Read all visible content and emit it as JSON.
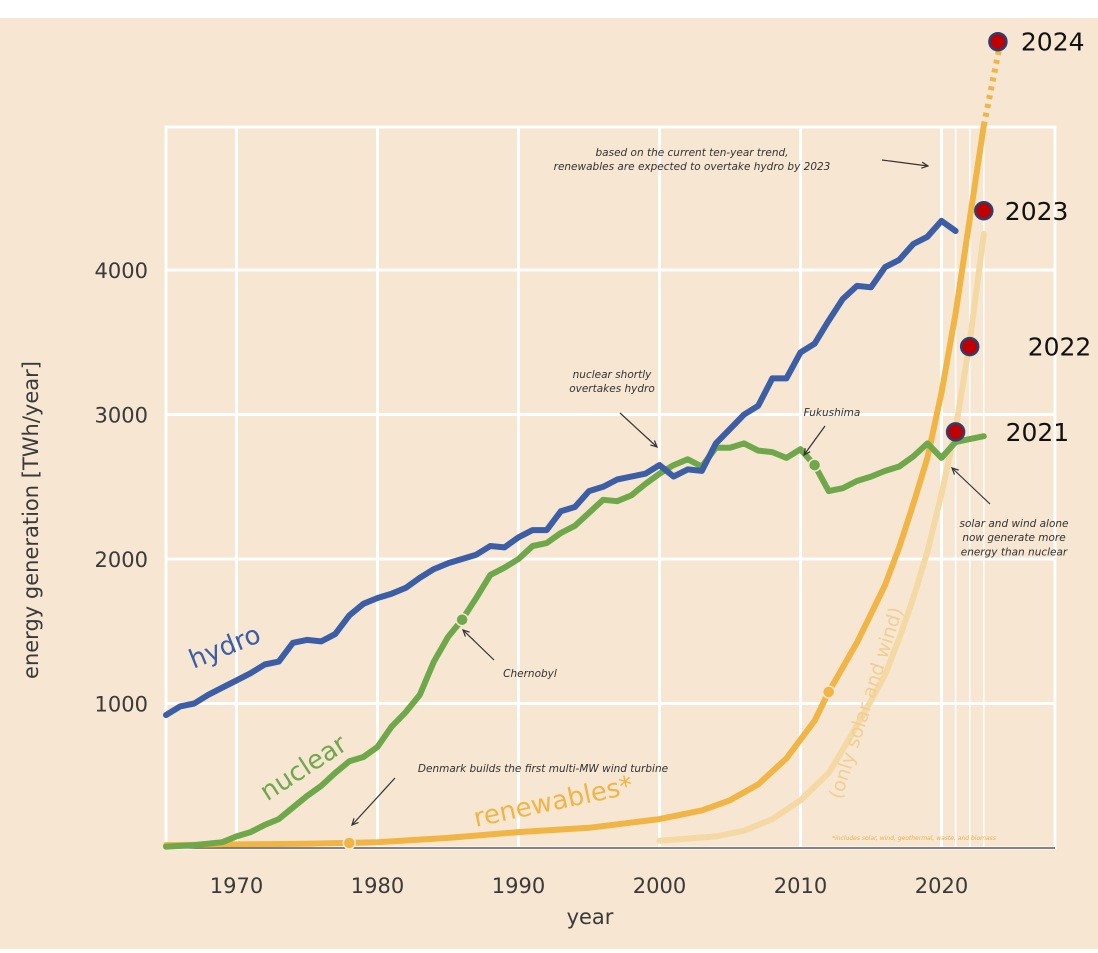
{
  "chart_data": {
    "type": "line",
    "xlabel": "year",
    "ylabel": "energy generation [TWh/year]",
    "xlim": [
      1965,
      2025
    ],
    "ylim": [
      0,
      5000
    ],
    "x_ticks": [
      "1970",
      "1980",
      "1990",
      "2000",
      "2010",
      "2020"
    ],
    "y_ticks": [
      "1000",
      "2000",
      "3000",
      "4000"
    ],
    "grid": true,
    "series": [
      {
        "name": "hydro",
        "color": "#3b5ea6",
        "points": [
          [
            1965,
            920
          ],
          [
            1966,
            980
          ],
          [
            1967,
            1000
          ],
          [
            1968,
            1060
          ],
          [
            1969,
            1110
          ],
          [
            1970,
            1160
          ],
          [
            1971,
            1210
          ],
          [
            1972,
            1270
          ],
          [
            1973,
            1290
          ],
          [
            1974,
            1420
          ],
          [
            1975,
            1440
          ],
          [
            1976,
            1430
          ],
          [
            1977,
            1480
          ],
          [
            1978,
            1610
          ],
          [
            1979,
            1690
          ],
          [
            1980,
            1730
          ],
          [
            1981,
            1760
          ],
          [
            1982,
            1800
          ],
          [
            1983,
            1870
          ],
          [
            1984,
            1930
          ],
          [
            1985,
            1970
          ],
          [
            1986,
            2000
          ],
          [
            1987,
            2030
          ],
          [
            1988,
            2090
          ],
          [
            1989,
            2080
          ],
          [
            1990,
            2150
          ],
          [
            1991,
            2200
          ],
          [
            1992,
            2200
          ],
          [
            1993,
            2330
          ],
          [
            1994,
            2360
          ],
          [
            1995,
            2470
          ],
          [
            1996,
            2500
          ],
          [
            1997,
            2550
          ],
          [
            1998,
            2570
          ],
          [
            1999,
            2590
          ],
          [
            2000,
            2650
          ],
          [
            2001,
            2570
          ],
          [
            2002,
            2620
          ],
          [
            2003,
            2610
          ],
          [
            2004,
            2800
          ],
          [
            2005,
            2900
          ],
          [
            2006,
            3000
          ],
          [
            2007,
            3060
          ],
          [
            2008,
            3250
          ],
          [
            2009,
            3250
          ],
          [
            2010,
            3430
          ],
          [
            2011,
            3490
          ],
          [
            2012,
            3650
          ],
          [
            2013,
            3800
          ],
          [
            2014,
            3890
          ],
          [
            2015,
            3880
          ],
          [
            2016,
            4020
          ],
          [
            2017,
            4070
          ],
          [
            2018,
            4180
          ],
          [
            2019,
            4230
          ],
          [
            2020,
            4340
          ],
          [
            2021,
            4270
          ]
        ]
      },
      {
        "name": "nuclear",
        "color": "#6fa84a",
        "points": [
          [
            1965,
            10
          ],
          [
            1967,
            20
          ],
          [
            1969,
            40
          ],
          [
            1970,
            80
          ],
          [
            1971,
            110
          ],
          [
            1972,
            160
          ],
          [
            1973,
            200
          ],
          [
            1974,
            280
          ],
          [
            1975,
            360
          ],
          [
            1976,
            430
          ],
          [
            1977,
            520
          ],
          [
            1978,
            600
          ],
          [
            1979,
            630
          ],
          [
            1980,
            700
          ],
          [
            1981,
            840
          ],
          [
            1982,
            940
          ],
          [
            1983,
            1060
          ],
          [
            1984,
            1290
          ],
          [
            1985,
            1460
          ],
          [
            1986,
            1580
          ],
          [
            1987,
            1730
          ],
          [
            1988,
            1890
          ],
          [
            1989,
            1940
          ],
          [
            1990,
            2000
          ],
          [
            1991,
            2090
          ],
          [
            1992,
            2110
          ],
          [
            1993,
            2180
          ],
          [
            1994,
            2230
          ],
          [
            1995,
            2320
          ],
          [
            1996,
            2410
          ],
          [
            1997,
            2400
          ],
          [
            1998,
            2440
          ],
          [
            1999,
            2520
          ],
          [
            2000,
            2590
          ],
          [
            2001,
            2650
          ],
          [
            2002,
            2690
          ],
          [
            2003,
            2640
          ],
          [
            2004,
            2770
          ],
          [
            2005,
            2770
          ],
          [
            2006,
            2800
          ],
          [
            2007,
            2750
          ],
          [
            2008,
            2740
          ],
          [
            2009,
            2700
          ],
          [
            2010,
            2760
          ],
          [
            2011,
            2650
          ],
          [
            2012,
            2470
          ],
          [
            2013,
            2490
          ],
          [
            2014,
            2540
          ],
          [
            2015,
            2570
          ],
          [
            2016,
            2610
          ],
          [
            2017,
            2640
          ],
          [
            2018,
            2710
          ],
          [
            2019,
            2800
          ],
          [
            2020,
            2700
          ],
          [
            2021,
            2810
          ],
          [
            2022,
            2830
          ],
          [
            2023,
            2850
          ]
        ]
      },
      {
        "name": "renewables*",
        "color": "#f0b545",
        "points": [
          [
            1965,
            20
          ],
          [
            1970,
            25
          ],
          [
            1975,
            30
          ],
          [
            1978,
            35
          ],
          [
            1980,
            40
          ],
          [
            1985,
            70
          ],
          [
            1990,
            110
          ],
          [
            1995,
            140
          ],
          [
            2000,
            200
          ],
          [
            2003,
            260
          ],
          [
            2005,
            330
          ],
          [
            2007,
            440
          ],
          [
            2009,
            620
          ],
          [
            2010,
            750
          ],
          [
            2011,
            880
          ],
          [
            2012,
            1080
          ],
          [
            2013,
            1250
          ],
          [
            2014,
            1420
          ],
          [
            2015,
            1620
          ],
          [
            2016,
            1820
          ],
          [
            2017,
            2080
          ],
          [
            2018,
            2380
          ],
          [
            2019,
            2700
          ],
          [
            2020,
            3150
          ],
          [
            2021,
            3700
          ],
          [
            2022,
            4350
          ],
          [
            2023,
            5000
          ]
        ]
      },
      {
        "name": "(only solar and wind)",
        "color": "#f5d9a4",
        "points": [
          [
            2000,
            50
          ],
          [
            2004,
            80
          ],
          [
            2006,
            120
          ],
          [
            2008,
            200
          ],
          [
            2010,
            330
          ],
          [
            2012,
            520
          ],
          [
            2013,
            680
          ],
          [
            2014,
            850
          ],
          [
            2015,
            1020
          ],
          [
            2016,
            1200
          ],
          [
            2017,
            1450
          ],
          [
            2018,
            1730
          ],
          [
            2019,
            2050
          ],
          [
            2020,
            2450
          ],
          [
            2021,
            2900
          ],
          [
            2022,
            3500
          ],
          [
            2023,
            4250
          ]
        ]
      }
    ],
    "highlight_points": [
      {
        "label": "2021",
        "x": 2021,
        "y": 2880
      },
      {
        "label": "2022",
        "x": 2022,
        "y": 3470
      },
      {
        "label": "2023",
        "x": 2023,
        "y": 4410
      },
      {
        "label": "2024",
        "x": 2024,
        "y": 5580
      }
    ],
    "event_markers": [
      {
        "series": "nuclear",
        "x": 1986,
        "y": 1580
      },
      {
        "series": "nuclear",
        "x": 2011,
        "y": 2650
      },
      {
        "series": "renewables*",
        "x": 1978,
        "y": 35
      },
      {
        "series": "renewables*",
        "x": 2012,
        "y": 1080
      }
    ],
    "annotations": [
      {
        "lines": [
          "based on the current ten-year trend,",
          "renewables are expected to overtake hydro by 2023"
        ]
      },
      {
        "lines": [
          "nuclear shortly",
          "overtakes hydro"
        ]
      },
      {
        "lines": [
          "Fukushima"
        ]
      },
      {
        "lines": [
          "Chernobyl"
        ]
      },
      {
        "lines": [
          "Denmark builds the first multi-MW wind turbine"
        ]
      },
      {
        "lines": [
          "solar and wind alone",
          "now generate more",
          "energy than nuclear"
        ]
      },
      {
        "lines": [
          "*includes solar, wind, geothermal, waste, and biomass"
        ]
      }
    ]
  }
}
